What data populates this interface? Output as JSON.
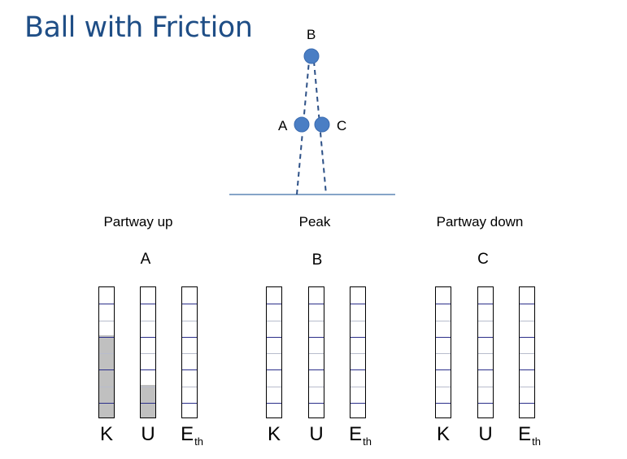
{
  "title": "Ball with Friction",
  "scene": {
    "point_labels": {
      "a": "A",
      "b": "B",
      "c": "C"
    },
    "ball_color": "#4a7ec4",
    "ground_color": "#5f87b5"
  },
  "sections": [
    {
      "title": "Partway up",
      "letter": "A",
      "bars": [
        {
          "label": "K",
          "sub": "",
          "fill_units": 5
        },
        {
          "label": "U",
          "sub": "",
          "fill_units": 2
        },
        {
          "label": "E",
          "sub": "th",
          "fill_units": 0
        }
      ]
    },
    {
      "title": "Peak",
      "letter": "B",
      "bars": [
        {
          "label": "K",
          "sub": "",
          "fill_units": 0
        },
        {
          "label": "U",
          "sub": "",
          "fill_units": 0
        },
        {
          "label": "E",
          "sub": "th",
          "fill_units": 0
        }
      ]
    },
    {
      "title": "Partway down",
      "letter": "C",
      "bars": [
        {
          "label": "K",
          "sub": "",
          "fill_units": 0
        },
        {
          "label": "U",
          "sub": "",
          "fill_units": 0
        },
        {
          "label": "E",
          "sub": "th",
          "fill_units": 0
        }
      ]
    }
  ],
  "bar_units": 8
}
